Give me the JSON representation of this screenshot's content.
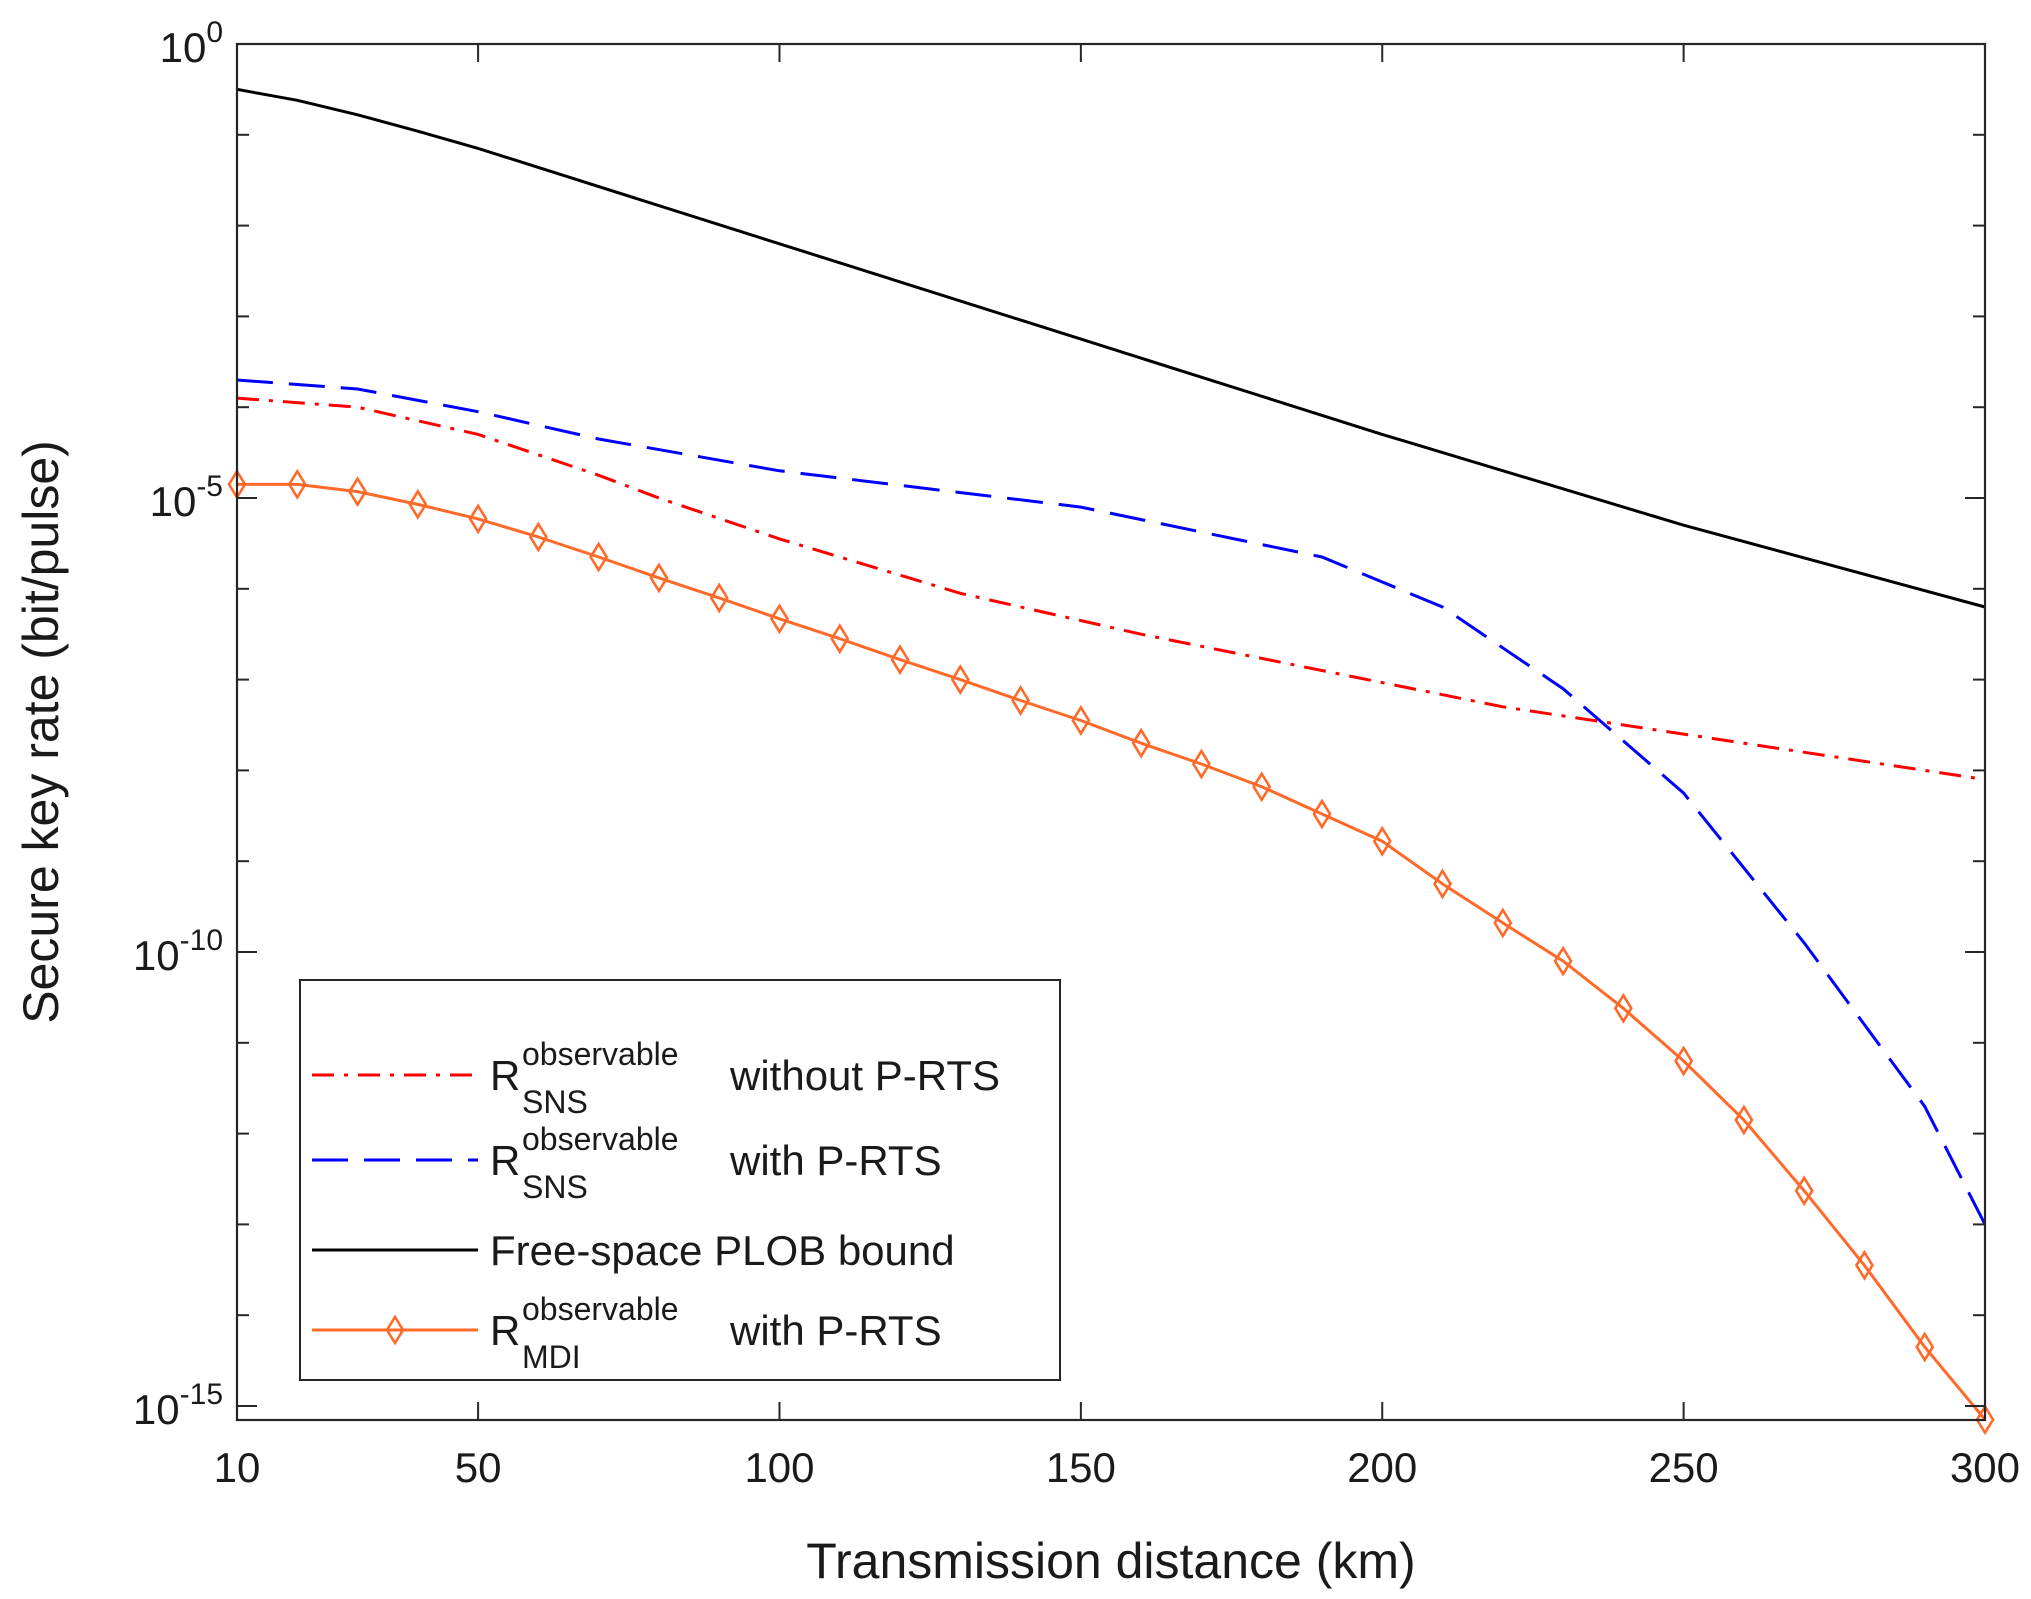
{
  "chart_data": {
    "type": "line",
    "xlabel": "Transmission distance (km)",
    "ylabel": "Secure key rate (bit/pulse)",
    "x_scale": "linear",
    "y_scale": "log",
    "xlim": [
      10,
      300
    ],
    "ylim_exponent": [
      -15,
      0
    ],
    "x_ticks": [
      10,
      50,
      100,
      150,
      200,
      250,
      300
    ],
    "y_ticks": [
      {
        "base": "10",
        "exp": "0",
        "value_exp": 0
      },
      {
        "base": "10",
        "exp": "-5",
        "value_exp": -5
      },
      {
        "base": "10",
        "exp": "-10",
        "value_exp": -10
      },
      {
        "base": "10",
        "exp": "-15",
        "value_exp": -15
      }
    ],
    "series": [
      {
        "name": "R_SNS^observable without P-RTS",
        "legend_base": "R",
        "legend_sup": "observable",
        "legend_sub": "SNS",
        "legend_text": "without P-RTS",
        "color": "#ff0000",
        "style": "dashdot",
        "marker": "none",
        "x": [
          10,
          30,
          50,
          70,
          80,
          100,
          130,
          160,
          190,
          220,
          250,
          300
        ],
        "log10_y": [
          -3.9,
          -4.0,
          -4.3,
          -4.75,
          -5.0,
          -5.45,
          -6.05,
          -6.5,
          -6.9,
          -7.3,
          -7.6,
          -8.1
        ]
      },
      {
        "name": "R_SNS^observable with P-RTS",
        "legend_base": "R",
        "legend_sup": "observable",
        "legend_sub": "SNS",
        "legend_text": "with P-RTS",
        "color": "#0000ff",
        "style": "dashed",
        "marker": "none",
        "x": [
          10,
          30,
          50,
          70,
          100,
          150,
          190,
          210,
          230,
          250,
          270,
          290,
          300
        ],
        "log10_y": [
          -3.7,
          -3.8,
          -4.05,
          -4.35,
          -4.7,
          -5.1,
          -5.65,
          -6.2,
          -7.1,
          -8.25,
          -9.9,
          -11.7,
          -13.0
        ]
      },
      {
        "name": "Free-space PLOB bound",
        "legend_text": "Free-space PLOB bound",
        "color": "#000000",
        "style": "solid",
        "marker": "none",
        "x": [
          10,
          20,
          30,
          40,
          50,
          100,
          150,
          200,
          250,
          300
        ],
        "log10_y": [
          -0.5,
          -0.62,
          -0.78,
          -0.96,
          -1.15,
          -2.2,
          -3.25,
          -4.3,
          -5.3,
          -6.2
        ]
      },
      {
        "name": "R_MDI^observable with P-RTS",
        "legend_base": "R",
        "legend_sup": "observable",
        "legend_sub": "MDI",
        "legend_text": "with P-RTS",
        "color": "#ff6a2a",
        "style": "solid",
        "marker": "diamond",
        "x": [
          10,
          20,
          30,
          40,
          50,
          60,
          70,
          80,
          90,
          100,
          110,
          120,
          130,
          140,
          150,
          160,
          170,
          180,
          190,
          200,
          210,
          220,
          230,
          240,
          250,
          260,
          270,
          280,
          290,
          300
        ],
        "log10_y": [
          -4.85,
          -4.85,
          -4.93,
          -5.07,
          -5.23,
          -5.43,
          -5.65,
          -5.88,
          -6.1,
          -6.33,
          -6.55,
          -6.78,
          -7.0,
          -7.23,
          -7.45,
          -7.7,
          -7.93,
          -8.18,
          -8.48,
          -8.78,
          -9.25,
          -9.68,
          -10.1,
          -10.62,
          -11.2,
          -11.85,
          -12.63,
          -13.45,
          -14.35,
          -15.15
        ]
      }
    ],
    "legend_position": "bottom-left",
    "grid": false
  }
}
